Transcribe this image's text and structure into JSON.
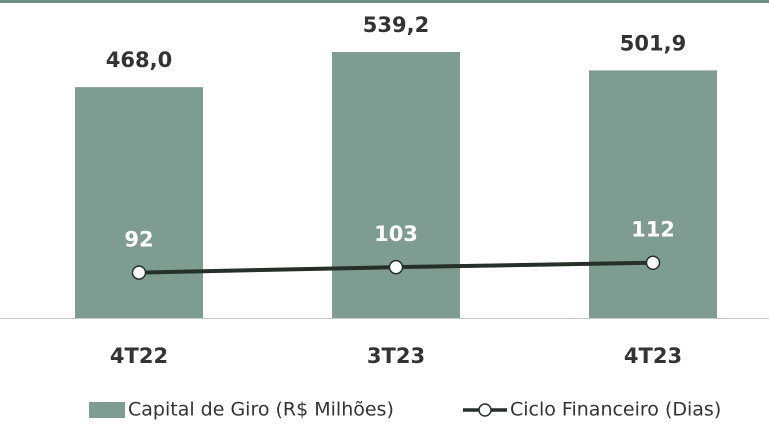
{
  "chart_data": {
    "type": "bar_line",
    "categories": [
      "4T22",
      "3T23",
      "4T23"
    ],
    "series": [
      {
        "name": "Capital de Giro (R$ Milhões)",
        "color": "#7f9c90",
        "type": "bar",
        "values": [
          468.0,
          539.2,
          501.9
        ],
        "value_labels": [
          "468,0",
          "539,2",
          "501,9"
        ]
      },
      {
        "name": "Ciclo Financeiro (Dias)",
        "color": "#253028",
        "type": "line",
        "axis": "y2",
        "values": [
          92,
          103,
          112
        ]
      }
    ],
    "ylim": [
      0,
      600
    ],
    "y2lim": [
      0,
      600
    ],
    "grid": false
  }
}
